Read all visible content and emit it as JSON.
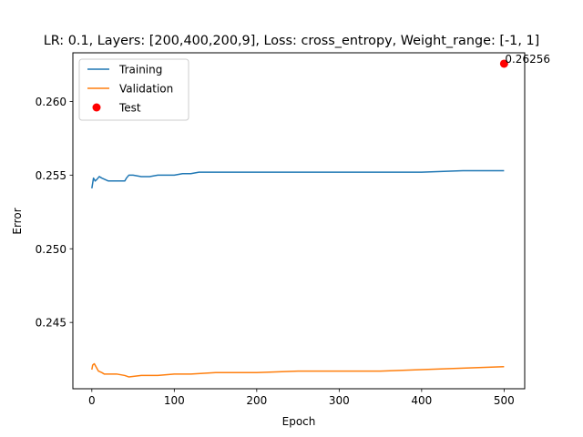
{
  "chart_data": {
    "type": "line",
    "title": "LR: 0.1, Layers: [200,400,200,9], Loss: cross_entropy, Weight_range: [-1, 1]",
    "xlabel": "Epoch",
    "ylabel": "Error",
    "xlim": [
      -23,
      525
    ],
    "ylim": [
      0.2405,
      0.2633
    ],
    "x_ticks": [
      0,
      100,
      200,
      300,
      400,
      500
    ],
    "y_ticks": [
      0.245,
      0.25,
      0.255,
      0.26
    ],
    "y_tick_labels": [
      "0.245",
      "0.250",
      "0.255",
      "0.260"
    ],
    "grid": false,
    "legend": {
      "position": "upper left"
    },
    "series": [
      {
        "name": "Training",
        "color": "#1f77b4",
        "points": [
          [
            0,
            0.2541
          ],
          [
            2,
            0.2548
          ],
          [
            4,
            0.2546
          ],
          [
            6,
            0.2547
          ],
          [
            9,
            0.2549
          ],
          [
            12,
            0.2548
          ],
          [
            16,
            0.2547
          ],
          [
            20,
            0.2546
          ],
          [
            25,
            0.2546
          ],
          [
            30,
            0.2546
          ],
          [
            35,
            0.2546
          ],
          [
            40,
            0.2546
          ],
          [
            42,
            0.2548
          ],
          [
            45,
            0.255
          ],
          [
            50,
            0.255
          ],
          [
            60,
            0.2549
          ],
          [
            70,
            0.2549
          ],
          [
            80,
            0.255
          ],
          [
            90,
            0.255
          ],
          [
            95,
            0.255
          ],
          [
            100,
            0.255
          ],
          [
            110,
            0.2551
          ],
          [
            120,
            0.2551
          ],
          [
            130,
            0.2552
          ],
          [
            150,
            0.2552
          ],
          [
            175,
            0.2552
          ],
          [
            200,
            0.2552
          ],
          [
            225,
            0.2552
          ],
          [
            250,
            0.2552
          ],
          [
            275,
            0.2552
          ],
          [
            300,
            0.2552
          ],
          [
            350,
            0.2552
          ],
          [
            400,
            0.2552
          ],
          [
            450,
            0.2553
          ],
          [
            500,
            0.2553
          ]
        ]
      },
      {
        "name": "Validation",
        "color": "#ff7f0e",
        "points": [
          [
            0,
            0.2418
          ],
          [
            1,
            0.2421
          ],
          [
            3,
            0.2422
          ],
          [
            5,
            0.242
          ],
          [
            8,
            0.2417
          ],
          [
            12,
            0.2416
          ],
          [
            15,
            0.2415
          ],
          [
            20,
            0.2415
          ],
          [
            30,
            0.2415
          ],
          [
            40,
            0.2414
          ],
          [
            45,
            0.2413
          ],
          [
            60,
            0.2414
          ],
          [
            80,
            0.2414
          ],
          [
            100,
            0.2415
          ],
          [
            120,
            0.2415
          ],
          [
            150,
            0.2416
          ],
          [
            200,
            0.2416
          ],
          [
            250,
            0.2417
          ],
          [
            300,
            0.2417
          ],
          [
            350,
            0.2417
          ],
          [
            400,
            0.2418
          ],
          [
            450,
            0.2419
          ],
          [
            500,
            0.242
          ]
        ]
      },
      {
        "name": "Test",
        "color": "#ff0000",
        "marker": "point",
        "points": [
          [
            500,
            0.26256
          ]
        ]
      }
    ],
    "annotations": [
      {
        "text": "0.26256",
        "x": 500,
        "y": 0.26256
      }
    ]
  }
}
